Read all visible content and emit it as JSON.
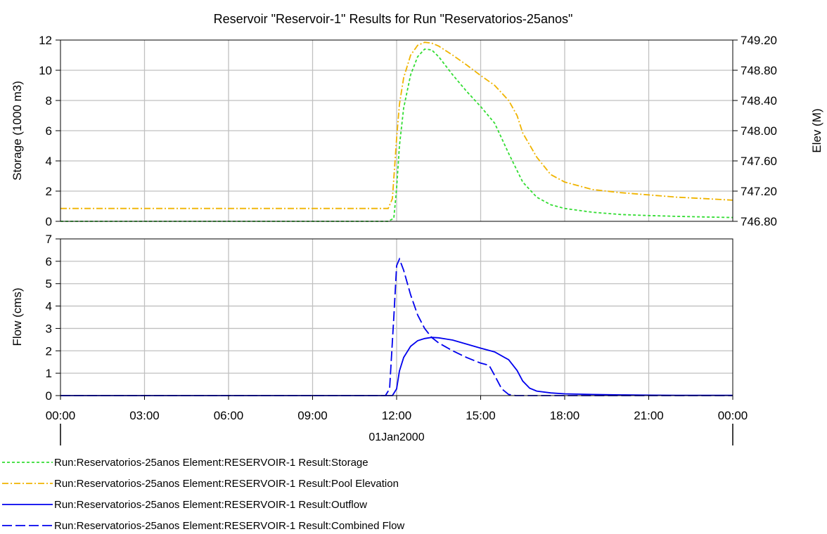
{
  "chart_data": [
    {
      "type": "line",
      "title": "Reservoir \"Reservoir-1\" Results for Run \"Reservatorios-25anos\"",
      "x_ticks": [
        "00:00",
        "03:00",
        "06:00",
        "09:00",
        "12:00",
        "15:00",
        "18:00",
        "21:00",
        "00:00"
      ],
      "x_date_label": "01Jan2000",
      "xlim_hours": [
        0,
        24
      ],
      "grid": true,
      "ylabel": "Storage (1000 m3)",
      "ylim": [
        0,
        12
      ],
      "y_ticks": [
        "0",
        "2",
        "4",
        "6",
        "8",
        "10",
        "12"
      ],
      "y2label": "Elev (M)",
      "y2lim": [
        746.8,
        749.2
      ],
      "y2_ticks": [
        "746.80",
        "747.20",
        "747.60",
        "748.00",
        "748.40",
        "748.80",
        "749.20"
      ],
      "series": [
        {
          "name": "Run:Reservatorios-25anos Element:RESERVOIR-1 Result:Storage",
          "axis": "left",
          "color": "#33dd33",
          "dash": "4,3",
          "x_hours": [
            0,
            11.7,
            11.9,
            12.0,
            12.1,
            12.25,
            12.5,
            12.75,
            13.0,
            13.25,
            13.5,
            14.0,
            14.5,
            15.0,
            15.5,
            16.0,
            16.5,
            17.0,
            17.5,
            18.0,
            19.0,
            20.0,
            21.0,
            22.0,
            23.0,
            24.0
          ],
          "y": [
            0,
            0,
            0.2,
            2.2,
            5.0,
            7.5,
            9.7,
            10.9,
            11.4,
            11.35,
            10.9,
            9.7,
            8.6,
            7.6,
            6.5,
            4.5,
            2.6,
            1.6,
            1.1,
            0.85,
            0.6,
            0.45,
            0.38,
            0.33,
            0.29,
            0.25
          ]
        },
        {
          "name": "Run:Reservatorios-25anos Element:RESERVOIR-1 Result:Pool Elevation",
          "axis": "right",
          "color": "#f0b400",
          "dash": "9,3,2,3",
          "x_hours": [
            0,
            11.7,
            11.85,
            12.0,
            12.1,
            12.25,
            12.5,
            12.75,
            13.0,
            13.25,
            13.5,
            14.0,
            14.5,
            15.0,
            15.5,
            16.0,
            16.3,
            16.5,
            17.0,
            17.5,
            18.0,
            19.0,
            20.0,
            21.0,
            22.0,
            23.0,
            24.0
          ],
          "y": [
            746.97,
            746.97,
            747.1,
            747.9,
            748.35,
            748.7,
            749.0,
            749.13,
            749.17,
            749.16,
            749.12,
            749.0,
            748.87,
            748.73,
            748.6,
            748.4,
            748.2,
            747.97,
            747.65,
            747.42,
            747.32,
            747.22,
            747.18,
            747.15,
            747.12,
            747.1,
            747.08
          ]
        }
      ]
    },
    {
      "type": "line",
      "x_ticks": [
        "00:00",
        "03:00",
        "06:00",
        "09:00",
        "12:00",
        "15:00",
        "18:00",
        "21:00",
        "00:00"
      ],
      "xlim_hours": [
        0,
        24
      ],
      "grid": true,
      "ylabel": "Flow (cms)",
      "ylim": [
        0,
        7
      ],
      "y_ticks": [
        "0",
        "1",
        "2",
        "3",
        "4",
        "5",
        "6",
        "7"
      ],
      "series": [
        {
          "name": "Run:Reservatorios-25anos Element:RESERVOIR-1 Result:Outflow",
          "color": "#0000ee",
          "dash": "",
          "x_hours": [
            0,
            11.85,
            12.0,
            12.1,
            12.25,
            12.5,
            12.75,
            13.0,
            13.25,
            13.5,
            14.0,
            14.5,
            15.0,
            15.5,
            16.0,
            16.3,
            16.5,
            16.75,
            17.0,
            17.5,
            18.0,
            19.0,
            20.0,
            21.0,
            22.0,
            24.0
          ],
          "y": [
            0,
            0,
            0.3,
            1.1,
            1.7,
            2.2,
            2.45,
            2.55,
            2.6,
            2.58,
            2.48,
            2.3,
            2.12,
            1.95,
            1.6,
            1.12,
            0.65,
            0.33,
            0.2,
            0.12,
            0.08,
            0.05,
            0.03,
            0.02,
            0.01,
            0.01
          ]
        },
        {
          "name": "Run:Reservatorios-25anos Element:RESERVOIR-1 Result:Combined Flow",
          "color": "#0000ee",
          "dash": "14,5",
          "x_hours": [
            0,
            11.6,
            11.75,
            11.9,
            12.0,
            12.1,
            12.25,
            12.5,
            12.75,
            13.0,
            13.25,
            13.5,
            14.0,
            14.5,
            15.0,
            15.3,
            15.5,
            15.75,
            16.0,
            16.25,
            24.0
          ],
          "y": [
            0,
            0,
            0.3,
            3.5,
            5.8,
            6.1,
            5.6,
            4.5,
            3.6,
            3.0,
            2.6,
            2.35,
            2.0,
            1.7,
            1.45,
            1.35,
            0.9,
            0.3,
            0.05,
            0.0,
            0.0
          ]
        }
      ]
    }
  ]
}
